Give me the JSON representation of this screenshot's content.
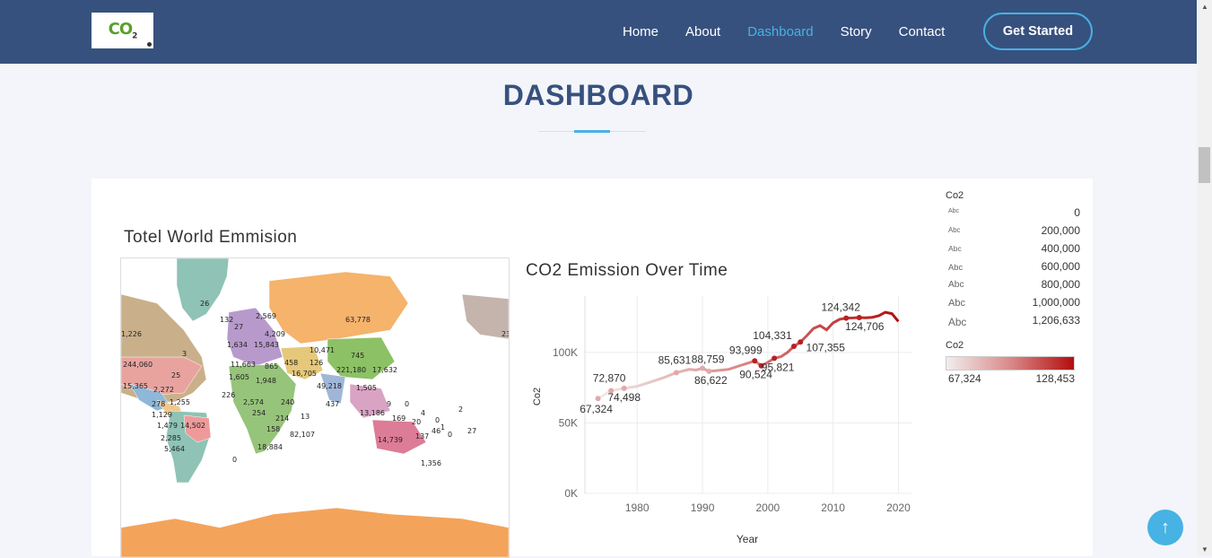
{
  "header": {
    "logo_text": "CO",
    "logo_sub": "2",
    "nav": [
      "Home",
      "About",
      "Dashboard",
      "Story",
      "Contact"
    ],
    "active": "Dashboard",
    "cta": "Get Started"
  },
  "page": {
    "section_title": "DASHBOARD"
  },
  "map": {
    "title": "Totel World Emmision",
    "labels": [
      "26",
      "132",
      "27",
      "2,569",
      "4,209",
      "1,226",
      "1,634",
      "15,843",
      "3",
      "244,060",
      "11,663",
      "865",
      "10,471",
      "745",
      "25",
      "1,605",
      "1,948",
      "16,705",
      "221,180",
      "17,632",
      "15,365",
      "2,272",
      "226",
      "458",
      "126",
      "49,218",
      "1,505",
      "9",
      "0",
      "278",
      "1,255",
      "2,574",
      "240",
      "437",
      "1,129",
      "254",
      "13",
      "13,186",
      "169",
      "4",
      "20",
      "0",
      "2",
      "1,479",
      "14,502",
      "214",
      "2,285",
      "158",
      "82,107",
      "137",
      "46",
      "1",
      "0",
      "27",
      "5,464",
      "18,884",
      "14,739",
      "0",
      "1,356",
      "63,778",
      "23"
    ]
  },
  "chart": {
    "title": "CO2 Emission Over Time",
    "x_label": "Year",
    "y_label": "Co2",
    "y_ticks": [
      "0K",
      "50K",
      "100K"
    ],
    "x_ticks": [
      "1980",
      "1990",
      "2000",
      "2010",
      "2020"
    ],
    "point_labels": [
      "72,870",
      "67,324",
      "74,498",
      "85,631",
      "88,759",
      "86,622",
      "93,999",
      "90,524",
      "104,331",
      "95,821",
      "107,355",
      "124,342",
      "124,706"
    ]
  },
  "chart_data": {
    "type": "line",
    "title": "CO2 Emission Over Time",
    "xlabel": "Year",
    "ylabel": "Co2",
    "ylim": [
      0,
      140000
    ],
    "xlim": [
      1972,
      2022
    ],
    "x": [
      1974,
      1975,
      1976,
      1978,
      1980,
      1982,
      1984,
      1986,
      1988,
      1989,
      1990,
      1991,
      1992,
      1994,
      1996,
      1998,
      1999,
      2000,
      2001,
      2002,
      2003,
      2004,
      2005,
      2006,
      2007,
      2008,
      2009,
      2010,
      2011,
      2012,
      2013,
      2014,
      2015,
      2016,
      2017,
      2018,
      2019,
      2020
    ],
    "y": [
      67324,
      70000,
      72870,
      74498,
      76000,
      79000,
      82000,
      85631,
      88000,
      87500,
      88759,
      86622,
      87000,
      88000,
      91000,
      93999,
      90524,
      93000,
      95821,
      97000,
      100000,
      104331,
      107355,
      112000,
      117000,
      119000,
      116000,
      121000,
      123500,
      124342,
      124500,
      124706,
      124600,
      124900,
      126000,
      128453,
      127500,
      122000
    ],
    "labels": [
      {
        "x": 1976,
        "y": 72870,
        "text": "72,870"
      },
      {
        "x": 1974,
        "y": 67324,
        "text": "67,324"
      },
      {
        "x": 1978,
        "y": 74498,
        "text": "74,498"
      },
      {
        "x": 1986,
        "y": 85631,
        "text": "85,631"
      },
      {
        "x": 1990,
        "y": 88759,
        "text": "88,759"
      },
      {
        "x": 1991,
        "y": 86622,
        "text": "86,622"
      },
      {
        "x": 1998,
        "y": 93999,
        "text": "93,999"
      },
      {
        "x": 1999,
        "y": 90524,
        "text": "90,524"
      },
      {
        "x": 2004,
        "y": 104331,
        "text": "104,331"
      },
      {
        "x": 2001,
        "y": 95821,
        "text": "95,821"
      },
      {
        "x": 2005,
        "y": 107355,
        "text": "107,355"
      },
      {
        "x": 2012,
        "y": 124342,
        "text": "124,342"
      },
      {
        "x": 2014,
        "y": 124706,
        "text": "124,706"
      }
    ],
    "color_range": [
      "#f2eded",
      "#b40d0d"
    ]
  },
  "legend": {
    "size_title": "Co2",
    "abc": "Abc",
    "size_items": [
      "0",
      "200,000",
      "400,000",
      "600,000",
      "800,000",
      "1,000,000",
      "1,206,633"
    ],
    "color_title": "Co2",
    "color_min": "67,324",
    "color_max": "128,453"
  },
  "fab": {
    "icon": "arrow-up-icon"
  }
}
